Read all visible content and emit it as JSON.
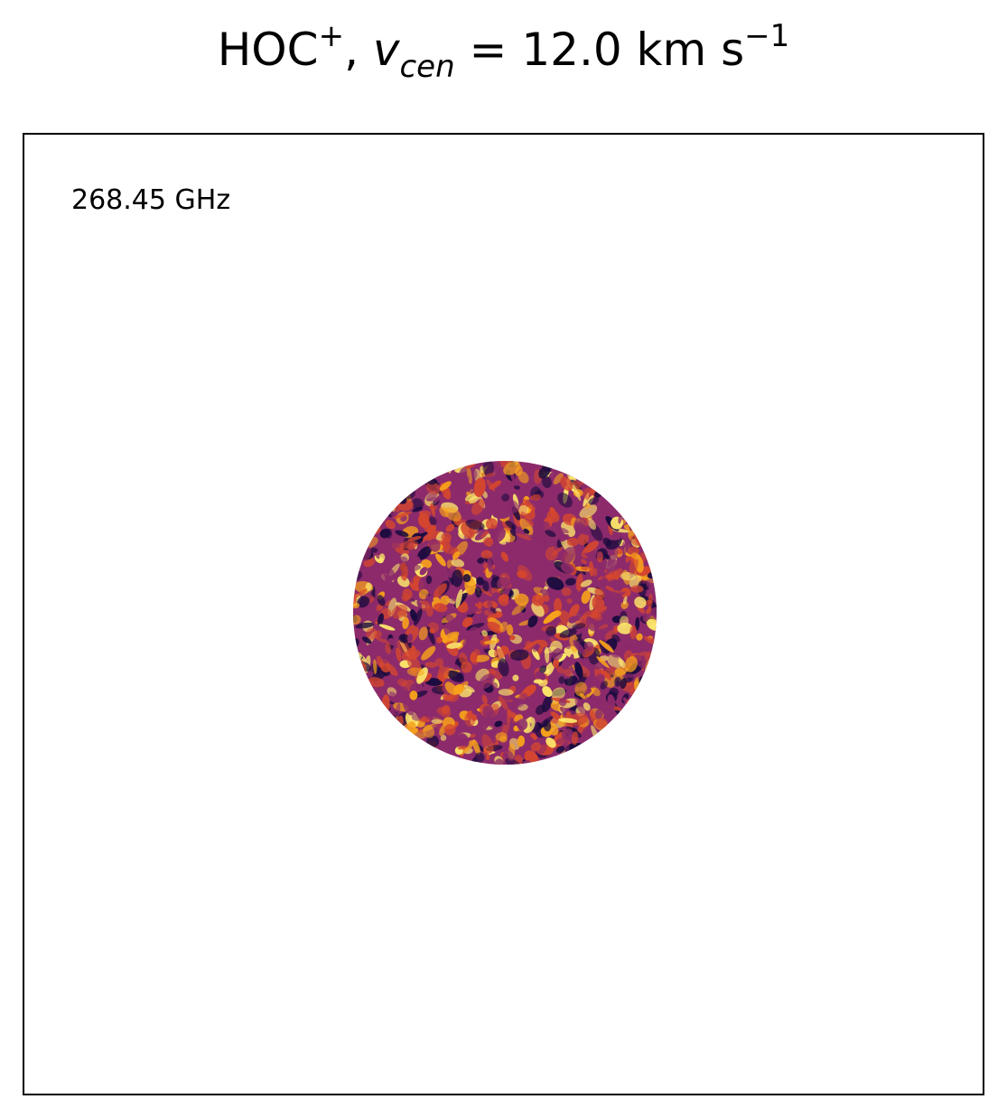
{
  "figure": {
    "title": {
      "species": "HOC",
      "species_sup": "+",
      "sep": ", ",
      "var": "v",
      "var_sub": "cen",
      "eq": " =  12.0 km s",
      "unit_sup": "−1"
    },
    "frequency_label": "268.45 GHz",
    "colormap": "inferno",
    "colors": {
      "dark": "#1a0b3f",
      "mid": "#8c2a6b",
      "warm": "#d4462f",
      "bright": "#f7a21b",
      "hot": "#fce66a"
    }
  }
}
